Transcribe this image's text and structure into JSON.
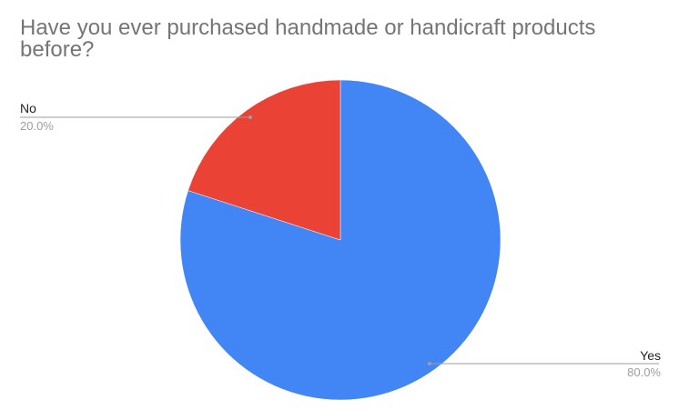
{
  "chart_data": {
    "type": "pie",
    "title": "Have you ever purchased handmade or handicraft products before?",
    "slices": [
      {
        "label": "Yes",
        "value": 80.0,
        "percent_label": "80.0%",
        "color": "#4285F4"
      },
      {
        "label": "No",
        "value": 20.0,
        "percent_label": "20.0%",
        "color": "#EA4335"
      }
    ],
    "legend": "none (labels with leader lines)",
    "colors": {
      "leader_line": "#9e9e9e",
      "label_text": "#222222",
      "percent_text": "#9e9e9e",
      "title_text": "#757575"
    }
  }
}
